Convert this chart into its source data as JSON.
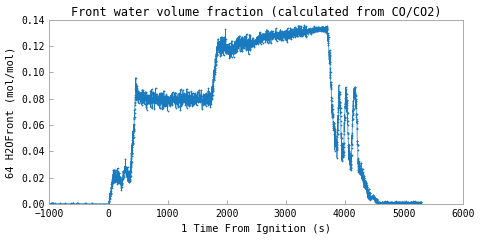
{
  "title": "Front water volume fraction (calculated from CO/CO2)",
  "xlabel": "1 Time From Ignition (s)",
  "ylabel": "64 H2OFront (mol/mol)",
  "xlim": [
    -1000,
    6000
  ],
  "ylim": [
    0,
    0.14
  ],
  "xticks": [
    -1000,
    0,
    1000,
    2000,
    3000,
    4000,
    5000,
    6000
  ],
  "yticks": [
    0,
    0.02,
    0.04,
    0.06,
    0.08,
    0.1,
    0.12,
    0.14
  ],
  "line_color": "#1a7abf",
  "bg_color": "#ffffff",
  "font_color": "#000000",
  "title_fontsize": 8.5,
  "label_fontsize": 7.5,
  "tick_fontsize": 7
}
